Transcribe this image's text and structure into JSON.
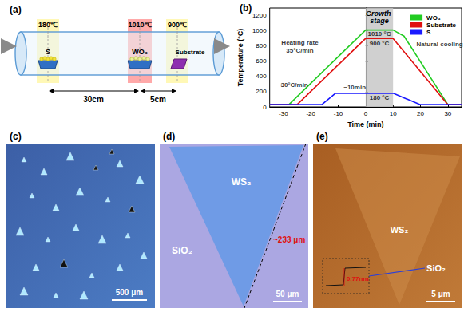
{
  "panel_labels": [
    "(a)",
    "(b)",
    "(c)",
    "(d)",
    "(e)"
  ],
  "diagram": {
    "temperatures": [
      "180℃",
      "1010℃",
      "900℃"
    ],
    "sources": [
      "S",
      "WO₃",
      "Substrate"
    ],
    "distances": [
      "30cm",
      "5cm"
    ]
  },
  "chart_data": {
    "type": "line",
    "xlabel": "Time (min)",
    "ylabel": "Temperature (°C)",
    "xlim": [
      -35,
      35
    ],
    "xticks": [
      -30,
      -20,
      -10,
      0,
      10,
      20,
      30
    ],
    "ylim": [
      0,
      1300
    ],
    "yticks": [
      0,
      200,
      400,
      600,
      800,
      1000,
      1200
    ],
    "grid": false,
    "legend": "upper right",
    "series": [
      {
        "name": "WO₃",
        "color": "#22cc22",
        "x": [
          -35,
          -28,
          0,
          10,
          14,
          30,
          35
        ],
        "values": [
          30,
          30,
          1010,
          1010,
          930,
          30,
          30
        ]
      },
      {
        "name": "Substrate",
        "color": "#e01010",
        "x": [
          -35,
          -25,
          0,
          10,
          30,
          35
        ],
        "values": [
          30,
          30,
          900,
          900,
          30,
          30
        ]
      },
      {
        "name": "S",
        "color": "#1a1aff",
        "x": [
          -35,
          -16,
          -11,
          10,
          20,
          35
        ],
        "values": [
          30,
          30,
          180,
          180,
          30,
          30
        ]
      }
    ],
    "shaded": {
      "label": "Growth stage",
      "x": [
        0,
        10
      ],
      "color": "#c4c4c4"
    },
    "annotations": [
      {
        "text": "Heating rate",
        "x": -24,
        "y": 840
      },
      {
        "text": "35°C/min",
        "x": -24,
        "y": 740
      },
      {
        "text": "Natural cooling",
        "x": 27,
        "y": 820
      },
      {
        "text": "30°C/min",
        "x": -26,
        "y": 290
      },
      {
        "text": "~10min",
        "x": -4,
        "y": 260
      },
      {
        "text": "1010 °C",
        "x": 5,
        "y": 960
      },
      {
        "text": "900 °C",
        "x": 5,
        "y": 830
      },
      {
        "text": "180 °C",
        "x": 5,
        "y": 120
      }
    ]
  },
  "images": [
    {
      "scale_bar": "500 μm"
    },
    {
      "labels": [
        "WS₂",
        "SiO₂"
      ],
      "length": "~233 μm",
      "scale_bar": "50 μm"
    },
    {
      "labels": [
        "WS₂",
        "SiO₂"
      ],
      "step_height": "0.77nm",
      "scale_bar": "5 μm"
    }
  ]
}
